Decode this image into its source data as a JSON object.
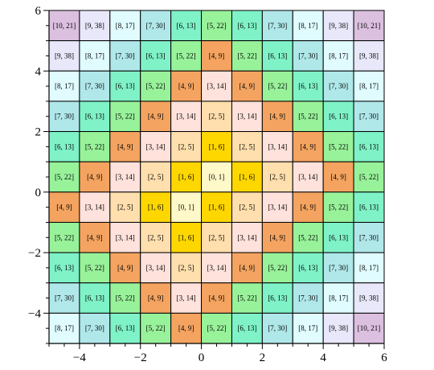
{
  "chart_data": {
    "type": "heatmap",
    "title": "",
    "xlabel": "",
    "ylabel": "",
    "xlim": [
      -5,
      6
    ],
    "ylim": [
      -5,
      6
    ],
    "xticks": [
      -4,
      -2,
      0,
      2,
      4,
      6
    ],
    "yticks": [
      -4,
      -2,
      0,
      2,
      4,
      6
    ],
    "xtick_labels": [
      "−4",
      "−2",
      "0",
      "2",
      "4",
      "6"
    ],
    "ytick_labels": [
      "−4",
      "−2",
      "0",
      "2",
      "4",
      "6"
    ],
    "grid": false,
    "cell_colors": {
      "[0, 1]": "#fff8c8",
      "[1, 6]": "#ffd700",
      "[2, 5]": "#ffdfad",
      "[3, 14]": "#ffe2dc",
      "[4, 9]": "#f4a460",
      "[5, 22]": "#98f29a",
      "[6, 13]": "#7ff2c8",
      "[7, 30]": "#b0e8ea",
      "[8, 17]": "#e0fcff",
      "[9, 38]": "#e8e8fa",
      "[10, 21]": "#dcc0e0"
    },
    "rows": [
      [
        "[10, 21]",
        "[9, 38]",
        "[8, 17]",
        "[7, 30]",
        "[6, 13]",
        "[5, 22]",
        "[6, 13]",
        "[7, 30]",
        "[8, 17]",
        "[9, 38]",
        "[10, 21]"
      ],
      [
        "[9, 38]",
        "[8, 17]",
        "[7, 30]",
        "[6, 13]",
        "[5, 22]",
        "[4, 9]",
        "[5, 22]",
        "[6, 13]",
        "[7, 30]",
        "[8, 17]",
        "[9, 38]"
      ],
      [
        "[8, 17]",
        "[7, 30]",
        "[6, 13]",
        "[5, 22]",
        "[4, 9]",
        "[3, 14]",
        "[4, 9]",
        "[5, 22]",
        "[6, 13]",
        "[7, 30]",
        "[8, 17]"
      ],
      [
        "[7, 30]",
        "[6, 13]",
        "[5, 22]",
        "[4, 9]",
        "[3, 14]",
        "[2, 5]",
        "[3, 14]",
        "[4, 9]",
        "[5, 22]",
        "[6, 13]",
        "[7, 30]"
      ],
      [
        "[6, 13]",
        "[5, 22]",
        "[4, 9]",
        "[3, 14]",
        "[2, 5]",
        "[1, 6]",
        "[2, 5]",
        "[3, 14]",
        "[4, 9]",
        "[5, 22]",
        "[6, 13]"
      ],
      [
        "[5, 22]",
        "[4, 9]",
        "[3, 14]",
        "[2, 5]",
        "[1, 6]",
        "[0, 1]",
        "[1, 6]",
        "[2, 5]",
        "[3, 14]",
        "[4, 9]",
        "[5, 22]"
      ],
      [
        "[4, 9]",
        "[3, 14]",
        "[2, 5]",
        "[1, 6]",
        "[0, 1]",
        "[1, 6]",
        "[2, 5]",
        "[3, 14]",
        "[4, 9]",
        "[5, 22]",
        "[6, 13]"
      ],
      [
        "[5, 22]",
        "[4, 9]",
        "[3, 14]",
        "[2, 5]",
        "[1, 6]",
        "[2, 5]",
        "[3, 14]",
        "[4, 9]",
        "[5, 22]",
        "[6, 13]",
        "[7, 30]"
      ],
      [
        "[6, 13]",
        "[5, 22]",
        "[4, 9]",
        "[3, 14]",
        "[2, 5]",
        "[3, 14]",
        "[4, 9]",
        "[5, 22]",
        "[6, 13]",
        "[7, 30]",
        "[8, 17]"
      ],
      [
        "[7, 30]",
        "[6, 13]",
        "[5, 22]",
        "[4, 9]",
        "[3, 14]",
        "[4, 9]",
        "[5, 22]",
        "[6, 13]",
        "[7, 30]",
        "[8, 17]",
        "[9, 38]"
      ],
      [
        "[8, 17]",
        "[7, 30]",
        "[6, 13]",
        "[5, 22]",
        "[4, 9]",
        "[5, 22]",
        "[6, 13]",
        "[7, 30]",
        "[8, 17]",
        "[9, 38]",
        "[10, 21]"
      ]
    ]
  }
}
